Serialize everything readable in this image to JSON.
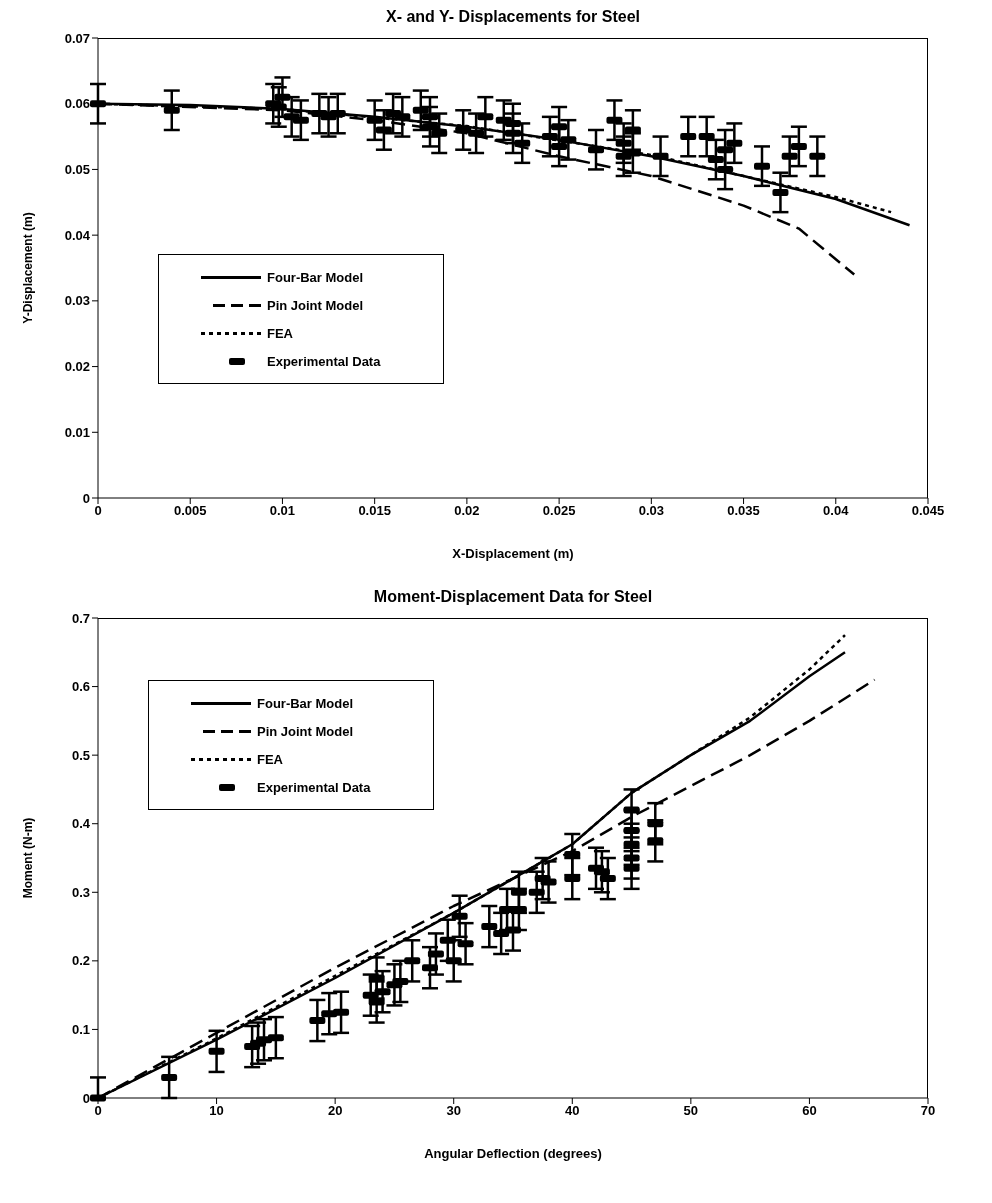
{
  "chart_data": [
    {
      "type": "line",
      "title": "X- and Y- Displacements for Steel",
      "xlabel": "X-Displacement (m)",
      "ylabel": "Y-Displacement (m)",
      "xlim": [
        0,
        0.045
      ],
      "xticks": [
        0,
        0.005,
        0.01,
        0.015,
        0.02,
        0.025,
        0.03,
        0.035,
        0.04,
        0.045
      ],
      "ylim": [
        0,
        0.07
      ],
      "yticks": [
        0,
        0.01,
        0.02,
        0.03,
        0.04,
        0.05,
        0.06,
        0.07
      ],
      "legend": "left",
      "series": [
        {
          "name": "Four-Bar Model",
          "type": "line",
          "color": "#000000",
          "line_style": "solid",
          "marker": "none",
          "x": [
            0,
            0.005,
            0.01,
            0.015,
            0.02,
            0.025,
            0.03,
            0.035,
            0.04,
            0.044
          ],
          "values": [
            0.06,
            0.0598,
            0.0592,
            0.058,
            0.0565,
            0.0545,
            0.052,
            0.049,
            0.0455,
            0.0415
          ]
        },
        {
          "name": "Pin Joint Model",
          "type": "line",
          "color": "#000000",
          "line_style": "dashed",
          "marker": "none",
          "x": [
            0,
            0.01,
            0.015,
            0.02,
            0.025,
            0.03,
            0.035,
            0.038,
            0.041
          ],
          "values": [
            0.06,
            0.059,
            0.0575,
            0.0555,
            0.052,
            0.049,
            0.0445,
            0.041,
            0.034
          ]
        },
        {
          "name": "FEA",
          "type": "line",
          "color": "#000000",
          "line_style": "dotted",
          "marker": "none",
          "x": [
            0,
            0.01,
            0.02,
            0.03,
            0.04,
            0.043
          ],
          "values": [
            0.06,
            0.0592,
            0.0566,
            0.0522,
            0.0458,
            0.0435
          ]
        },
        {
          "name": "Experimental Data",
          "type": "scatter",
          "color": "#000000",
          "marker": "square",
          "x": [
            0,
            0.004,
            0.0095,
            0.0098,
            0.01,
            0.0105,
            0.011,
            0.012,
            0.0125,
            0.013,
            0.015,
            0.0155,
            0.016,
            0.0165,
            0.0175,
            0.018,
            0.018,
            0.0185,
            0.0198,
            0.0205,
            0.021,
            0.022,
            0.0225,
            0.0225,
            0.023,
            0.0245,
            0.025,
            0.025,
            0.0255,
            0.027,
            0.028,
            0.0285,
            0.0285,
            0.029,
            0.029,
            0.0305,
            0.032,
            0.033,
            0.0335,
            0.034,
            0.034,
            0.0345,
            0.036,
            0.037,
            0.0375,
            0.038,
            0.039
          ],
          "values": [
            0.06,
            0.059,
            0.06,
            0.0595,
            0.061,
            0.058,
            0.0575,
            0.0585,
            0.058,
            0.0585,
            0.0575,
            0.056,
            0.0585,
            0.058,
            0.059,
            0.0565,
            0.058,
            0.0555,
            0.056,
            0.0555,
            0.058,
            0.0575,
            0.0555,
            0.057,
            0.054,
            0.055,
            0.0535,
            0.0565,
            0.0545,
            0.053,
            0.0575,
            0.054,
            0.052,
            0.0525,
            0.056,
            0.052,
            0.055,
            0.055,
            0.0515,
            0.053,
            0.05,
            0.054,
            0.0505,
            0.0465,
            0.052,
            0.0535,
            0.052
          ],
          "errors": [
            0.003,
            0.003,
            0.003,
            0.003,
            0.003,
            0.003,
            0.003,
            0.003,
            0.003,
            0.003,
            0.003,
            0.003,
            0.003,
            0.003,
            0.003,
            0.003,
            0.003,
            0.003,
            0.003,
            0.003,
            0.003,
            0.003,
            0.003,
            0.003,
            0.003,
            0.003,
            0.003,
            0.003,
            0.003,
            0.003,
            0.003,
            0.003,
            0.003,
            0.003,
            0.003,
            0.003,
            0.003,
            0.003,
            0.003,
            0.003,
            0.003,
            0.003,
            0.003,
            0.003,
            0.003,
            0.003,
            0.003
          ]
        }
      ]
    },
    {
      "type": "line",
      "title": "Moment-Displacement Data for Steel",
      "xlabel": "Angular Deflection (degrees)",
      "ylabel": "Moment (N-m)",
      "xlim": [
        0,
        70
      ],
      "xticks": [
        0,
        10,
        20,
        30,
        40,
        50,
        60,
        70
      ],
      "ylim": [
        0,
        0.7
      ],
      "yticks": [
        0,
        0.1,
        0.2,
        0.3,
        0.4,
        0.5,
        0.6,
        0.7
      ],
      "legend": "top left",
      "series": [
        {
          "name": "Four-Bar Model",
          "type": "line",
          "color": "#000000",
          "line_style": "solid",
          "marker": "none",
          "x": [
            0,
            10,
            20,
            30,
            40,
            45,
            50,
            55,
            60,
            63
          ],
          "values": [
            0,
            0.085,
            0.175,
            0.27,
            0.37,
            0.445,
            0.5,
            0.55,
            0.615,
            0.65
          ]
        },
        {
          "name": "Pin Joint Model",
          "type": "line",
          "color": "#000000",
          "line_style": "dashed",
          "marker": "none",
          "x": [
            0,
            10,
            20,
            30,
            40,
            45,
            50,
            55,
            60,
            65.5
          ],
          "values": [
            0,
            0.095,
            0.19,
            0.28,
            0.36,
            0.41,
            0.455,
            0.5,
            0.55,
            0.61
          ]
        },
        {
          "name": "FEA",
          "type": "line",
          "color": "#000000",
          "line_style": "dotted",
          "marker": "none",
          "x": [
            0,
            10,
            20,
            30,
            40,
            45,
            50,
            55,
            60,
            63
          ],
          "values": [
            0,
            0.087,
            0.178,
            0.27,
            0.37,
            0.445,
            0.5,
            0.555,
            0.625,
            0.675
          ]
        },
        {
          "name": "Experimental Data",
          "type": "scatter",
          "color": "#000000",
          "marker": "square",
          "x": [
            0,
            6,
            10,
            13,
            13.5,
            14,
            15,
            18.5,
            19.5,
            20.5,
            23,
            23.5,
            23.5,
            24,
            25,
            25.5,
            26.5,
            28,
            28.5,
            29.5,
            30,
            30.5,
            31,
            33,
            34,
            34.5,
            35,
            35.5,
            35.5,
            37,
            37.5,
            38,
            40,
            40,
            42,
            42.5,
            43,
            45,
            45,
            45,
            45,
            45,
            47,
            47
          ],
          "values": [
            0,
            0.03,
            0.068,
            0.075,
            0.08,
            0.085,
            0.088,
            0.113,
            0.123,
            0.125,
            0.15,
            0.175,
            0.14,
            0.155,
            0.165,
            0.17,
            0.2,
            0.19,
            0.21,
            0.23,
            0.2,
            0.265,
            0.225,
            0.25,
            0.24,
            0.275,
            0.245,
            0.3,
            0.275,
            0.3,
            0.32,
            0.315,
            0.355,
            0.32,
            0.335,
            0.33,
            0.32,
            0.42,
            0.39,
            0.37,
            0.35,
            0.335,
            0.4,
            0.375
          ],
          "errors": [
            [
              0,
              0.03
            ],
            0.03,
            0.03,
            0.03,
            0.03,
            0.03,
            0.03,
            0.03,
            0.03,
            0.03,
            0.03,
            0.03,
            0.03,
            0.03,
            0.03,
            0.03,
            0.03,
            0.03,
            0.03,
            0.03,
            0.03,
            0.03,
            0.03,
            0.03,
            0.03,
            0.03,
            0.03,
            0.03,
            0.03,
            0.03,
            0.03,
            0.03,
            0.03,
            0.03,
            0.03,
            0.03,
            0.03,
            0.03,
            0.03,
            0.03,
            0.03,
            0.03,
            0.03,
            0.03
          ]
        }
      ]
    }
  ]
}
